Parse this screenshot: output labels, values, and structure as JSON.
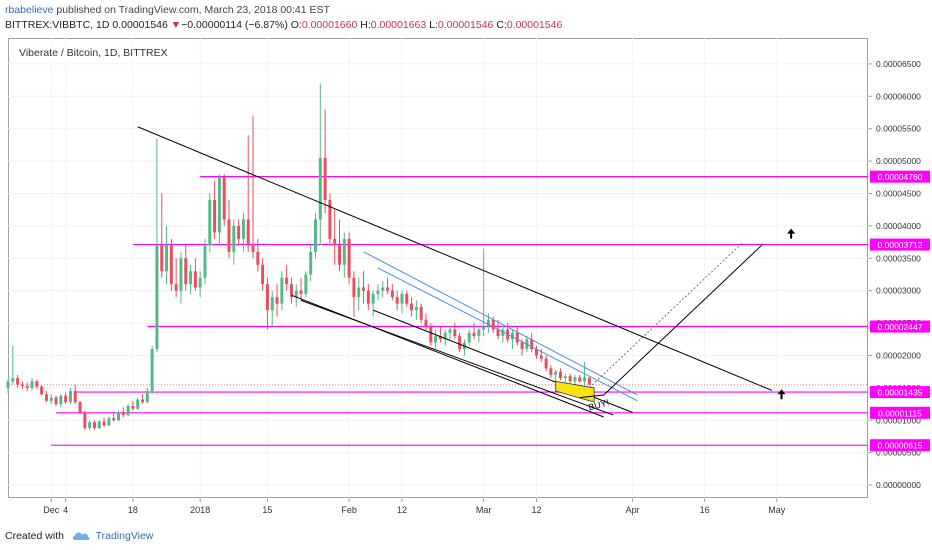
{
  "header": {
    "author": "rbabelieve",
    "published_text": "published on TradingView.com, March 23, 2018 00:41 EST",
    "symbol": "BITTREX:VIBBTC, 1D",
    "last_price": "0.00001546",
    "change_arrow": "▼",
    "change": "−0.00000114 (−6.87%)",
    "open_label": "O:",
    "open": "0.00001660",
    "high_label": "H:",
    "high": "0.00001663",
    "low_label": "L:",
    "low": "0.00001546",
    "close_label": "C:",
    "close": "0.00001546"
  },
  "footer": {
    "created_with": "Created with",
    "brand": "TradingView"
  },
  "chart_data": {
    "type": "candlestick",
    "title": "Viberate / Bitcoin, 1D, BITTREX",
    "y_ticks": [
      "0.00006500",
      "0.00006000",
      "0.00005500",
      "0.00005000",
      "0.00004500",
      "0.00004000",
      "0.00003500",
      "0.00003000",
      "0.00002500",
      "0.00002000",
      "0.00001500",
      "0.00001000",
      "0.00000500",
      "0.00000000"
    ],
    "ylim": [
      -2e-06,
      6.9e-05
    ],
    "x_ticks": [
      {
        "label": "Dec",
        "date": "2017-12-01"
      },
      {
        "label": "4",
        "date": "2017-12-04"
      },
      {
        "label": "18",
        "date": "2017-12-18"
      },
      {
        "label": "2018",
        "date": "2018-01-01"
      },
      {
        "label": "15",
        "date": "2018-01-15"
      },
      {
        "label": "Feb",
        "date": "2018-02-01"
      },
      {
        "label": "12",
        "date": "2018-02-12"
      },
      {
        "label": "Mar",
        "date": "2018-03-01"
      },
      {
        "label": "12",
        "date": "2018-03-12"
      },
      {
        "label": "Apr",
        "date": "2018-04-01"
      },
      {
        "label": "16",
        "date": "2018-04-16"
      },
      {
        "label": "May",
        "date": "2018-05-01"
      }
    ],
    "xlim": [
      "2017-11-22",
      "2018-05-20"
    ],
    "price_levels": [
      "0.00004760",
      "0.00003712",
      "0.00002447",
      "0.00001435",
      "0.00001115",
      "0.00000615"
    ],
    "current_price": "0.00001546",
    "annotation": "BUY!",
    "colors": {
      "up": "#53b987",
      "down": "#eb4d5c",
      "level": "#ff00ff",
      "trend": "#000000",
      "channel": "#4a90e2",
      "buy_box": "#f5e316"
    },
    "candles": [
      [
        "2017-11-22",
        1.5e-05,
        1.63e-05,
        1.42e-05,
        1.6e-05
      ],
      [
        "2017-11-23",
        1.6e-05,
        2.15e-05,
        1.55e-05,
        1.65e-05
      ],
      [
        "2017-11-24",
        1.65e-05,
        1.7e-05,
        1.5e-05,
        1.55e-05
      ],
      [
        "2017-11-25",
        1.55e-05,
        1.6e-05,
        1.48e-05,
        1.53e-05
      ],
      [
        "2017-11-26",
        1.53e-05,
        1.58e-05,
        1.45e-05,
        1.5e-05
      ],
      [
        "2017-11-27",
        1.5e-05,
        1.65e-05,
        1.46e-05,
        1.6e-05
      ],
      [
        "2017-11-28",
        1.6e-05,
        1.62e-05,
        1.48e-05,
        1.52e-05
      ],
      [
        "2017-11-29",
        1.52e-05,
        1.55e-05,
        1.38e-05,
        1.4e-05
      ],
      [
        "2017-11-30",
        1.4e-05,
        1.45e-05,
        1.28e-05,
        1.3e-05
      ],
      [
        "2017-12-01",
        1.3e-05,
        1.4e-05,
        1.25e-05,
        1.35e-05
      ],
      [
        "2017-12-02",
        1.35e-05,
        1.38e-05,
        1.22e-05,
        1.25e-05
      ],
      [
        "2017-12-03",
        1.25e-05,
        1.4e-05,
        1.2e-05,
        1.38e-05
      ],
      [
        "2017-12-04",
        1.38e-05,
        1.43e-05,
        1.25e-05,
        1.28e-05
      ],
      [
        "2017-12-05",
        1.28e-05,
        1.5e-05,
        1.25e-05,
        1.45e-05
      ],
      [
        "2017-12-06",
        1.45e-05,
        1.55e-05,
        1.25e-05,
        1.28e-05
      ],
      [
        "2017-12-07",
        1.28e-05,
        1.3e-05,
        1.1e-05,
        1.12e-05
      ],
      [
        "2017-12-08",
        1.12e-05,
        1.15e-05,
        8.5e-06,
        8.8e-06
      ],
      [
        "2017-12-09",
        8.8e-06,
        1e-05,
        8.4e-06,
        9.7e-06
      ],
      [
        "2017-12-10",
        9.7e-06,
        1e-05,
        8.5e-06,
        8.8e-06
      ],
      [
        "2017-12-11",
        8.8e-06,
        1e-05,
        8.7e-06,
        9.8e-06
      ],
      [
        "2017-12-12",
        9.8e-06,
        1.04e-05,
        9e-06,
        9.2e-06
      ],
      [
        "2017-12-13",
        9.2e-06,
        1.06e-05,
        9.1e-06,
        1.03e-05
      ],
      [
        "2017-12-14",
        1.03e-05,
        1.1e-05,
        9.8e-06,
        1e-05
      ],
      [
        "2017-12-15",
        1e-05,
        1.15e-05,
        9.9e-06,
        1.12e-05
      ],
      [
        "2017-12-16",
        1.12e-05,
        1.2e-05,
        1.05e-05,
        1.08e-05
      ],
      [
        "2017-12-17",
        1.08e-05,
        1.25e-05,
        1.06e-05,
        1.22e-05
      ],
      [
        "2017-12-18",
        1.22e-05,
        1.3e-05,
        1.15e-05,
        1.18e-05
      ],
      [
        "2017-12-19",
        1.18e-05,
        1.35e-05,
        1.16e-05,
        1.32e-05
      ],
      [
        "2017-12-20",
        1.32e-05,
        1.4e-05,
        1.25e-05,
        1.28e-05
      ],
      [
        "2017-12-21",
        1.28e-05,
        1.5e-05,
        1.26e-05,
        1.45e-05
      ],
      [
        "2017-12-22",
        1.45e-05,
        2.15e-05,
        1.4e-05,
        2.1e-05
      ],
      [
        "2017-12-23",
        2.1e-05,
        5.35e-05,
        2.05e-05,
        3.7e-05
      ],
      [
        "2017-12-24",
        3.7e-05,
        4.5e-05,
        3.2e-05,
        3.3e-05
      ],
      [
        "2017-12-25",
        3.3e-05,
        4e-05,
        3.1e-05,
        3.7e-05
      ],
      [
        "2017-12-26",
        3.7e-05,
        3.8e-05,
        3e-05,
        3.1e-05
      ],
      [
        "2017-12-27",
        3.1e-05,
        3.5e-05,
        2.9e-05,
        3e-05
      ],
      [
        "2017-12-28",
        3e-05,
        3.6e-05,
        2.8e-05,
        3.5e-05
      ],
      [
        "2017-12-29",
        3.5e-05,
        3.7e-05,
        3e-05,
        3.1e-05
      ],
      [
        "2017-12-30",
        3.1e-05,
        3.4e-05,
        2.95e-05,
        3.3e-05
      ],
      [
        "2017-12-31",
        3.3e-05,
        3.5e-05,
        3e-05,
        3.05e-05
      ],
      [
        "2018-01-01",
        3.05e-05,
        3.3e-05,
        2.9e-05,
        3.2e-05
      ],
      [
        "2018-01-02",
        3.2e-05,
        3.8e-05,
        3.1e-05,
        3.7e-05
      ],
      [
        "2018-01-03",
        3.7e-05,
        4.5e-05,
        3.6e-05,
        4.4e-05
      ],
      [
        "2018-01-04",
        4.4e-05,
        4.7e-05,
        3.8e-05,
        3.9e-05
      ],
      [
        "2018-01-05",
        3.9e-05,
        4.8e-05,
        3.7e-05,
        4.75e-05
      ],
      [
        "2018-01-06",
        4.75e-05,
        4.8e-05,
        4e-05,
        4.1e-05
      ],
      [
        "2018-01-07",
        4.1e-05,
        4.4e-05,
        3.5e-05,
        3.6e-05
      ],
      [
        "2018-01-08",
        3.6e-05,
        4.1e-05,
        3.4e-05,
        4e-05
      ],
      [
        "2018-01-09",
        4e-05,
        4.1e-05,
        3.7e-05,
        3.8e-05
      ],
      [
        "2018-01-10",
        3.8e-05,
        4.2e-05,
        3.6e-05,
        4.1e-05
      ],
      [
        "2018-01-11",
        4.1e-05,
        5.4e-05,
        3.6e-05,
        3.7e-05
      ],
      [
        "2018-01-12",
        3.7e-05,
        5.7e-05,
        3.5e-05,
        3.6e-05
      ],
      [
        "2018-01-13",
        3.6e-05,
        3.8e-05,
        3.3e-05,
        3.4e-05
      ],
      [
        "2018-01-14",
        3.4e-05,
        3.5e-05,
        3e-05,
        3.1e-05
      ],
      [
        "2018-01-15",
        3.1e-05,
        3.2e-05,
        2.4e-05,
        2.7e-05
      ],
      [
        "2018-01-16",
        2.7e-05,
        3e-05,
        2.45e-05,
        2.9e-05
      ],
      [
        "2018-01-17",
        2.9e-05,
        3.1e-05,
        2.6e-05,
        2.8e-05
      ],
      [
        "2018-01-18",
        2.8e-05,
        3.3e-05,
        2.7e-05,
        3.2e-05
      ],
      [
        "2018-01-19",
        3.2e-05,
        3.4e-05,
        3e-05,
        3.1e-05
      ],
      [
        "2018-01-20",
        3.1e-05,
        3.2e-05,
        2.8e-05,
        2.9e-05
      ],
      [
        "2018-01-21",
        2.9e-05,
        3.1e-05,
        2.75e-05,
        3e-05
      ],
      [
        "2018-01-22",
        3e-05,
        3.2e-05,
        2.85e-05,
        2.95e-05
      ],
      [
        "2018-01-23",
        2.95e-05,
        3.3e-05,
        2.9e-05,
        3.25e-05
      ],
      [
        "2018-01-24",
        3.25e-05,
        3.7e-05,
        3.15e-05,
        3.6e-05
      ],
      [
        "2018-01-25",
        3.6e-05,
        4.2e-05,
        3.5e-05,
        4.1e-05
      ],
      [
        "2018-01-26",
        4.1e-05,
        6.2e-05,
        3.7e-05,
        5.05e-05
      ],
      [
        "2018-01-27",
        5.05e-05,
        5.8e-05,
        4.2e-05,
        4.4e-05
      ],
      [
        "2018-01-28",
        4.4e-05,
        4.5e-05,
        3.7e-05,
        3.8e-05
      ],
      [
        "2018-01-29",
        3.8e-05,
        4.25e-05,
        3.4e-05,
        3.7e-05
      ],
      [
        "2018-01-30",
        3.7e-05,
        4.1e-05,
        3.3e-05,
        3.4e-05
      ],
      [
        "2018-01-31",
        3.4e-05,
        3.9e-05,
        3.2e-05,
        3.8e-05
      ],
      [
        "2018-02-01",
        3.8e-05,
        3.9e-05,
        3.1e-05,
        3.2e-05
      ],
      [
        "2018-02-02",
        3.2e-05,
        3.3e-05,
        2.6e-05,
        2.9e-05
      ],
      [
        "2018-02-03",
        2.9e-05,
        3.2e-05,
        2.7e-05,
        3.05e-05
      ],
      [
        "2018-02-04",
        3.05e-05,
        3.3e-05,
        2.8e-05,
        3e-05
      ],
      [
        "2018-02-05",
        3e-05,
        3.1e-05,
        2.7e-05,
        2.8e-05
      ],
      [
        "2018-02-06",
        2.8e-05,
        3e-05,
        2.6e-05,
        2.95e-05
      ],
      [
        "2018-02-07",
        2.95e-05,
        3.1e-05,
        2.85e-05,
        3e-05
      ],
      [
        "2018-02-08",
        3e-05,
        3.15e-05,
        2.9e-05,
        3.05e-05
      ],
      [
        "2018-02-09",
        3.05e-05,
        3.2e-05,
        2.95e-05,
        3e-05
      ],
      [
        "2018-02-10",
        3e-05,
        3.1e-05,
        2.85e-05,
        2.9e-05
      ],
      [
        "2018-02-11",
        2.9e-05,
        3e-05,
        2.7e-05,
        2.8e-05
      ],
      [
        "2018-02-12",
        2.8e-05,
        3e-05,
        2.65e-05,
        2.95e-05
      ],
      [
        "2018-02-13",
        2.95e-05,
        3e-05,
        2.75e-05,
        2.8e-05
      ],
      [
        "2018-02-14",
        2.8e-05,
        2.9e-05,
        2.6e-05,
        2.7e-05
      ],
      [
        "2018-02-15",
        2.7e-05,
        2.85e-05,
        2.55e-05,
        2.75e-05
      ],
      [
        "2018-02-16",
        2.75e-05,
        2.8e-05,
        2.5e-05,
        2.55e-05
      ],
      [
        "2018-02-17",
        2.55e-05,
        2.65e-05,
        2.4e-05,
        2.45e-05
      ],
      [
        "2018-02-18",
        2.45e-05,
        2.5e-05,
        2.15e-05,
        2.2e-05
      ],
      [
        "2018-02-19",
        2.2e-05,
        2.4e-05,
        2.1e-05,
        2.3e-05
      ],
      [
        "2018-02-20",
        2.3e-05,
        2.45e-05,
        2.2e-05,
        2.25e-05
      ],
      [
        "2018-02-21",
        2.25e-05,
        2.4e-05,
        2.15e-05,
        2.35e-05
      ],
      [
        "2018-02-22",
        2.35e-05,
        2.45e-05,
        2.25e-05,
        2.4e-05
      ],
      [
        "2018-02-23",
        2.4e-05,
        2.5e-05,
        2.25e-05,
        2.3e-05
      ],
      [
        "2018-02-24",
        2.3e-05,
        2.35e-05,
        2.05e-05,
        2.1e-05
      ],
      [
        "2018-02-25",
        2.1e-05,
        2.25e-05,
        2e-05,
        2.2e-05
      ],
      [
        "2018-02-26",
        2.2e-05,
        2.4e-05,
        2.15e-05,
        2.35e-05
      ],
      [
        "2018-02-27",
        2.35e-05,
        2.5e-05,
        2.25e-05,
        2.3e-05
      ],
      [
        "2018-02-28",
        2.3e-05,
        2.45e-05,
        2.2e-05,
        2.4e-05
      ],
      [
        "2018-03-01",
        2.4e-05,
        3.65e-05,
        2.3e-05,
        2.45e-05
      ],
      [
        "2018-03-02",
        2.45e-05,
        2.65e-05,
        2.35e-05,
        2.55e-05
      ],
      [
        "2018-03-03",
        2.55e-05,
        2.6e-05,
        2.35e-05,
        2.4e-05
      ],
      [
        "2018-03-04",
        2.4e-05,
        2.55e-05,
        2.25e-05,
        2.3e-05
      ],
      [
        "2018-03-05",
        2.3e-05,
        2.45e-05,
        2.2e-05,
        2.4e-05
      ],
      [
        "2018-03-06",
        2.4e-05,
        2.5e-05,
        2.2e-05,
        2.25e-05
      ],
      [
        "2018-03-07",
        2.25e-05,
        2.4e-05,
        2.1e-05,
        2.35e-05
      ],
      [
        "2018-03-08",
        2.35e-05,
        2.45e-05,
        2.15e-05,
        2.2e-05
      ],
      [
        "2018-03-09",
        2.2e-05,
        2.25e-05,
        2e-05,
        2.1e-05
      ],
      [
        "2018-03-10",
        2.1e-05,
        2.3e-05,
        2.05e-05,
        2.25e-05
      ],
      [
        "2018-03-11",
        2.25e-05,
        2.35e-05,
        2.05e-05,
        2.1e-05
      ],
      [
        "2018-03-12",
        2.1e-05,
        2.15e-05,
        1.95e-05,
        2e-05
      ],
      [
        "2018-03-13",
        2e-05,
        2.1e-05,
        1.9e-05,
        1.95e-05
      ],
      [
        "2018-03-14",
        1.95e-05,
        2e-05,
        1.75e-05,
        1.8e-05
      ],
      [
        "2018-03-15",
        1.8e-05,
        1.85e-05,
        1.65e-05,
        1.7e-05
      ],
      [
        "2018-03-16",
        1.7e-05,
        1.78e-05,
        1.6e-05,
        1.75e-05
      ],
      [
        "2018-03-17",
        1.75e-05,
        1.8e-05,
        1.62e-05,
        1.65e-05
      ],
      [
        "2018-03-18",
        1.65e-05,
        1.72e-05,
        1.55e-05,
        1.68e-05
      ],
      [
        "2018-03-19",
        1.68e-05,
        1.72e-05,
        1.58e-05,
        1.6e-05
      ],
      [
        "2018-03-20",
        1.6e-05,
        1.7e-05,
        1.55e-05,
        1.66e-05
      ],
      [
        "2018-03-21",
        1.66e-05,
        1.7e-05,
        1.58e-05,
        1.6e-05
      ],
      [
        "2018-03-22",
        1.6e-05,
        1.9e-05,
        1.52e-05,
        1.66e-05
      ],
      [
        "2018-03-23",
        1.66e-05,
        1.66e-05,
        1.54e-05,
        1.55e-05
      ]
    ]
  }
}
